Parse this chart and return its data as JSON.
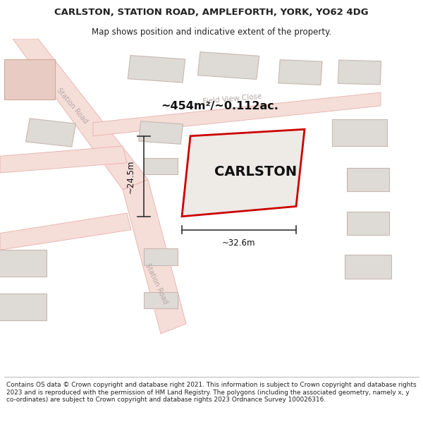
{
  "title": "CARLSTON, STATION ROAD, AMPLEFORTH, YORK, YO62 4DG",
  "subtitle": "Map shows position and indicative extent of the property.",
  "footer": "Contains OS data © Crown copyright and database right 2021. This information is subject to Crown copyright and database rights 2023 and is reproduced with the permission of HM Land Registry. The polygons (including the associated geometry, namely x, y co-ordinates) are subject to Crown copyright and database rights 2023 Ordnance Survey 100026316.",
  "property_name": "CARLSTON",
  "area_text": "~454m²/~0.112ac.",
  "width_text": "~32.6m",
  "height_text": "~24.5m",
  "map_bg": "#f9f7f5",
  "road_fill": "#f5ddd8",
  "road_edge": "#e8b0a8",
  "building_fill": "#dedad6",
  "building_edge": "#c8b8b0",
  "pink_building_fill": "#e8ccc4",
  "pink_building_edge": "#d0a898",
  "prop_fill": "#eeeae6",
  "prop_edge": "#cc0000",
  "dim_color": "#333333",
  "road_label_color": "#b8a8a8",
  "text_color": "#222222",
  "figsize": [
    6.0,
    6.25
  ],
  "dpi": 100
}
